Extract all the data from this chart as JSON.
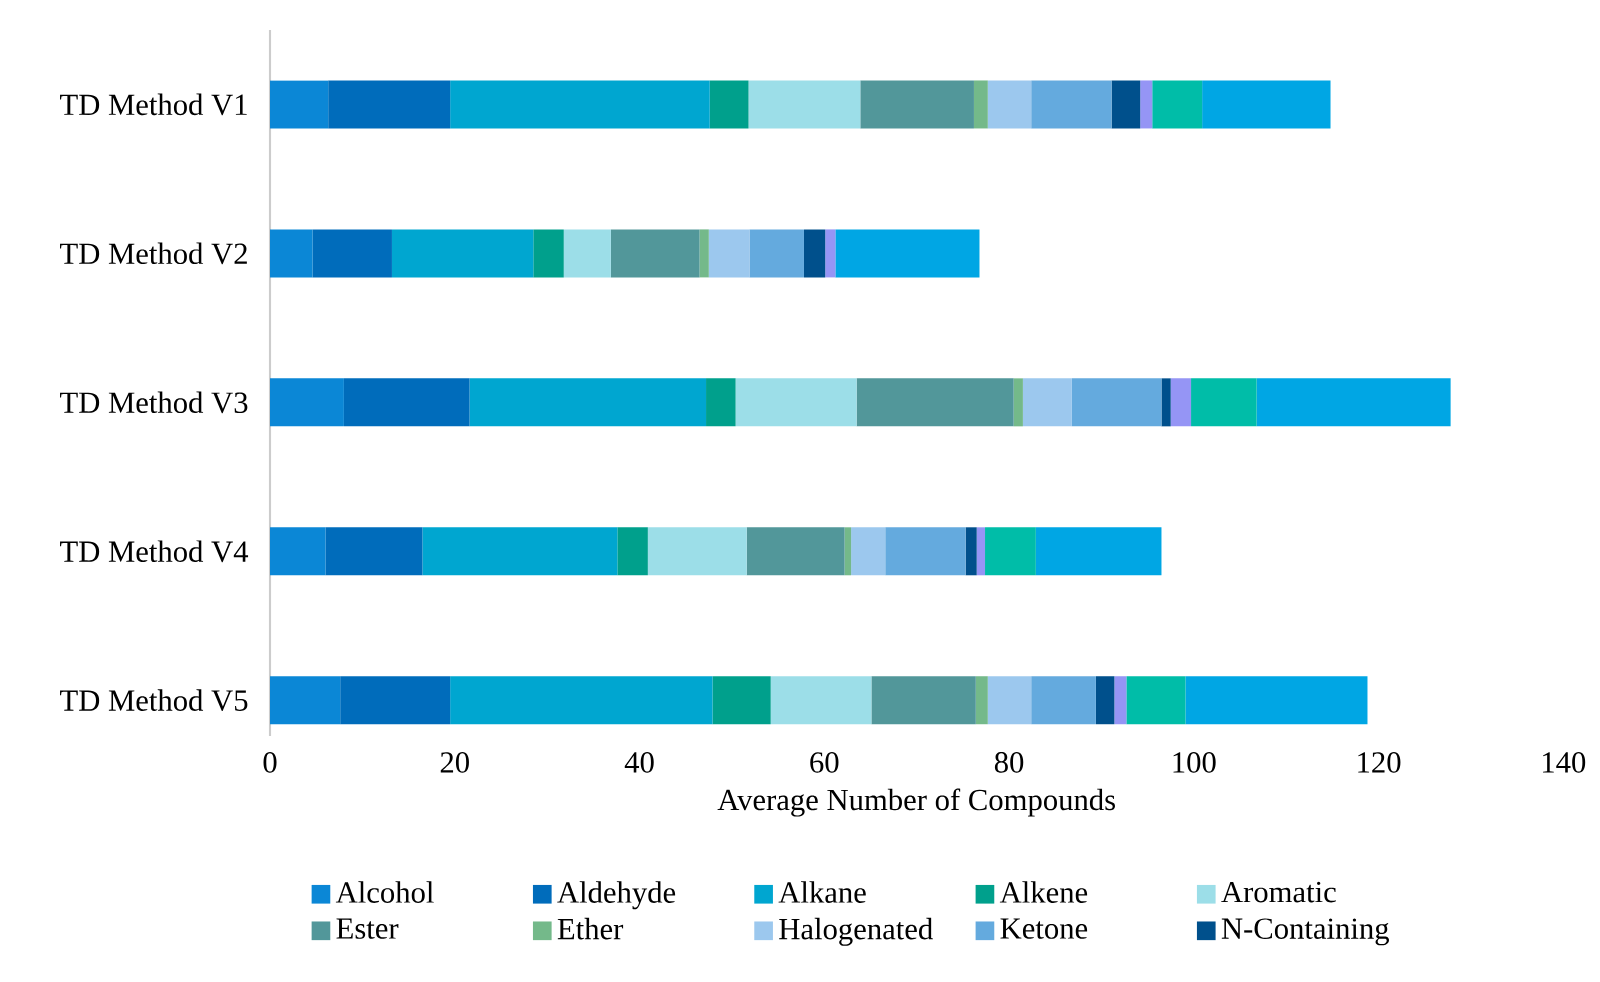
{
  "chart_data": {
    "type": "bar",
    "orientation": "horizontal",
    "stacked": true,
    "xlabel": "Average Number of Compounds",
    "xlim": [
      0,
      140
    ],
    "xticks": [
      0,
      20,
      40,
      60,
      80,
      100,
      120,
      140
    ],
    "legend": "bottom",
    "categories": [
      "TD Method V1",
      "TD Method V2",
      "TD Method V3",
      "TD Method V4",
      "TD Method V5"
    ],
    "series": [
      {
        "name": "Alcohol",
        "color": "#0b87d6",
        "values": [
          6.3,
          4.6,
          8.0,
          6.0,
          7.6
        ]
      },
      {
        "name": "Aldehyde",
        "color": "#006cbb",
        "values": [
          13.2,
          8.6,
          13.6,
          10.5,
          11.9
        ]
      },
      {
        "name": "Alkane",
        "color": "#00a6d0",
        "values": [
          28.1,
          15.3,
          25.6,
          21.1,
          28.4
        ]
      },
      {
        "name": "Alkene",
        "color": "#00a08c",
        "values": [
          4.2,
          3.3,
          3.2,
          3.3,
          6.3
        ]
      },
      {
        "name": "Aromatic",
        "color": "#9cdee8",
        "values": [
          12.1,
          5.1,
          13.1,
          10.7,
          10.9
        ]
      },
      {
        "name": "Ester",
        "color": "#52979a",
        "values": [
          12.3,
          9.6,
          17.0,
          10.6,
          11.3
        ]
      },
      {
        "name": "Ether",
        "color": "#74b98a",
        "values": [
          1.5,
          1.0,
          1.0,
          0.7,
          1.3
        ]
      },
      {
        "name": "Halogenated",
        "color": "#9cc8ee",
        "values": [
          4.7,
          4.4,
          5.3,
          3.7,
          4.7
        ]
      },
      {
        "name": "Ketone",
        "color": "#64aade",
        "values": [
          8.7,
          5.9,
          9.7,
          8.7,
          7.0
        ]
      },
      {
        "name": "N-Containing",
        "color": "#00508c",
        "values": [
          3.1,
          2.3,
          1.0,
          1.2,
          2.0
        ]
      },
      {
        "color": "#9595f5",
        "values": [
          1.3,
          1.1,
          2.2,
          0.9,
          1.3
        ]
      },
      {
        "color": "#00bda8",
        "values": [
          5.4,
          0,
          7.1,
          5.5,
          6.4
        ]
      },
      {
        "color": "#00a6e4",
        "values": [
          13.9,
          15.6,
          21.0,
          13.6,
          19.7
        ]
      }
    ]
  }
}
